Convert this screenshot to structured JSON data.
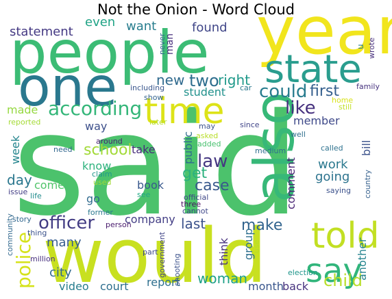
{
  "chart_data": {
    "type": "wordcloud",
    "title": "Not the Onion - Word Cloud",
    "colormap": "viridis",
    "words": [
      {
        "text": "said",
        "color": "#4cc26c"
      },
      {
        "text": "would",
        "color": "#c8e020"
      },
      {
        "text": "people",
        "color": "#3cbc75"
      },
      {
        "text": "year",
        "color": "#f1e51d"
      },
      {
        "text": "one",
        "color": "#2a788e"
      },
      {
        "text": "state",
        "color": "#2a9d8e"
      },
      {
        "text": "also",
        "color": "#37b878"
      },
      {
        "text": "time",
        "color": "#dde318"
      },
      {
        "text": "told",
        "color": "#c2df23"
      },
      {
        "text": "say",
        "color": "#31b57b"
      },
      {
        "text": "according",
        "color": "#34b679"
      },
      {
        "text": "could",
        "color": "#287c8e"
      },
      {
        "text": "like",
        "color": "#46317e"
      },
      {
        "text": "officer",
        "color": "#433d84"
      },
      {
        "text": "police",
        "color": "#d5e21a"
      },
      {
        "text": "school",
        "color": "#a2da37"
      },
      {
        "text": "law",
        "color": "#453781"
      },
      {
        "text": "case",
        "color": "#38588c"
      },
      {
        "text": "make",
        "color": "#32648e"
      },
      {
        "text": "child",
        "color": "#b8de29"
      },
      {
        "text": "first",
        "color": "#355f8d"
      },
      {
        "text": "two",
        "color": "#2e6e8e"
      },
      {
        "text": "new",
        "color": "#306a8e"
      },
      {
        "text": "right",
        "color": "#1f998a"
      },
      {
        "text": "get",
        "color": "#2cb17e"
      },
      {
        "text": "last",
        "color": "#3b528b"
      },
      {
        "text": "woman",
        "color": "#1fa088"
      },
      {
        "text": "going",
        "color": "#2c738e"
      },
      {
        "text": "work",
        "color": "#2a788e"
      },
      {
        "text": "day",
        "color": "#2a778e"
      },
      {
        "text": "many",
        "color": "#365d8d"
      },
      {
        "text": "city",
        "color": "#30698e"
      },
      {
        "text": "statement",
        "color": "#443983"
      },
      {
        "text": "even",
        "color": "#20a386"
      },
      {
        "text": "want",
        "color": "#287d8e"
      },
      {
        "text": "found",
        "color": "#404688"
      },
      {
        "text": "made",
        "color": "#95d840"
      },
      {
        "text": "student",
        "color": "#21918c"
      },
      {
        "text": "member",
        "color": "#3e4989"
      },
      {
        "text": "way",
        "color": "#3c4f8a"
      },
      {
        "text": "week",
        "color": "#25858e"
      },
      {
        "text": "take",
        "color": "#472c7a"
      },
      {
        "text": "know",
        "color": "#2db27d"
      },
      {
        "text": "public",
        "color": "#2f6c8e"
      },
      {
        "text": "company",
        "color": "#433e85"
      },
      {
        "text": "go",
        "color": "#306a8e"
      },
      {
        "text": "book",
        "color": "#38588c"
      },
      {
        "text": "come",
        "color": "#50c46a"
      },
      {
        "text": "think",
        "color": "#46307e"
      },
      {
        "text": "group",
        "color": "#2e6f8e"
      },
      {
        "text": "comment",
        "color": "#482374"
      },
      {
        "text": "bill",
        "color": "#3b528b"
      },
      {
        "text": "another",
        "color": "#25838e"
      },
      {
        "text": "video",
        "color": "#287d8e"
      },
      {
        "text": "court",
        "color": "#2e6e8e"
      },
      {
        "text": "report",
        "color": "#2e6f8e"
      },
      {
        "text": "month",
        "color": "#39568c"
      },
      {
        "text": "back",
        "color": "#46327e"
      },
      {
        "text": "man",
        "color": "#472e7c"
      },
      {
        "text": "never",
        "color": "#32658e"
      },
      {
        "text": "u",
        "color": "#277f8e"
      },
      {
        "text": "wrote",
        "color": "#472f7d"
      },
      {
        "text": "including",
        "color": "#39568c"
      },
      {
        "text": "car",
        "color": "#2a788e"
      },
      {
        "text": "family",
        "color": "#46327e"
      },
      {
        "text": "show",
        "color": "#33638d"
      },
      {
        "text": "home",
        "color": "#d8e219"
      },
      {
        "text": "still",
        "color": "#c0df25"
      },
      {
        "text": "reported",
        "color": "#a5db36"
      },
      {
        "text": "later",
        "color": "#b5de2b"
      },
      {
        "text": "around",
        "color": "#482173"
      },
      {
        "text": "may",
        "color": "#3b528b"
      },
      {
        "text": "since",
        "color": "#404588"
      },
      {
        "text": "asked",
        "color": "#b8de29"
      },
      {
        "text": "added",
        "color": "#48c16e"
      },
      {
        "text": "well",
        "color": "#2e6f8e"
      },
      {
        "text": "need",
        "color": "#31678e"
      },
      {
        "text": "medium",
        "color": "#2e6e8e"
      },
      {
        "text": "called",
        "color": "#2d718e"
      },
      {
        "text": "claim",
        "color": "#1f978b"
      },
      {
        "text": "used",
        "color": "#a2da37"
      },
      {
        "text": "issue",
        "color": "#433e85"
      },
      {
        "text": "life",
        "color": "#228c8d"
      },
      {
        "text": "see",
        "color": "#22a785"
      },
      {
        "text": "official",
        "color": "#3f4788"
      },
      {
        "text": "three",
        "color": "#470d60"
      },
      {
        "text": "cannot",
        "color": "#3f4889"
      },
      {
        "text": "saying",
        "color": "#3b518b"
      },
      {
        "text": "country",
        "color": "#35608d"
      },
      {
        "text": "former",
        "color": "#2a788e"
      },
      {
        "text": "story",
        "color": "#31678e"
      },
      {
        "text": "person",
        "color": "#481a6c"
      },
      {
        "text": "thing",
        "color": "#3b528b"
      },
      {
        "text": "community",
        "color": "#31688e"
      },
      {
        "text": "million",
        "color": "#472f7d"
      },
      {
        "text": "part",
        "color": "#3e4a89"
      },
      {
        "text": "use",
        "color": "#b5de2b"
      },
      {
        "text": "government",
        "color": "#414487"
      },
      {
        "text": "shooting",
        "color": "#3b528b"
      },
      {
        "text": "election",
        "color": "#1f968b"
      }
    ]
  }
}
